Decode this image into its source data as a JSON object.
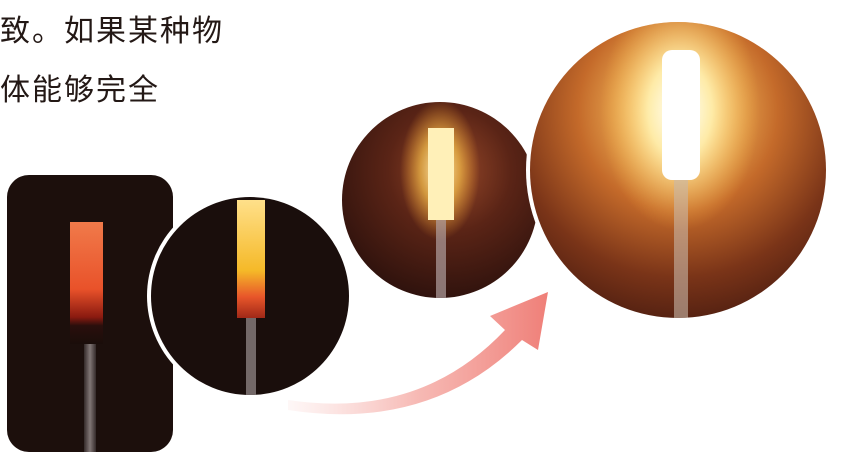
{
  "text": {
    "line1": "致。如果某种物",
    "line2": "体能够完全"
  },
  "figure": {
    "description_icons": [
      "heated-rod-red-photo",
      "heated-rod-yellow-photo",
      "heated-rod-bright-photo",
      "heated-rod-brightest-photo",
      "progression-arrow-icon"
    ],
    "colors": {
      "background_dark": "#1a0d0a",
      "red_hot": "#e8461f",
      "yellow_hot": "#f7c93a",
      "white_hot": "#fff3c2",
      "arrow": "#f08a86"
    }
  }
}
